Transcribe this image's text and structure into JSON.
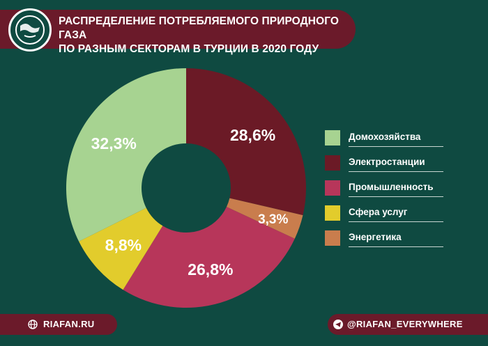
{
  "header": {
    "title": "РАСПРЕДЕЛЕНИЕ ПОТРЕБЛЯЕМОГО ПРИРОДНОГО ГАЗА\nПО РАЗНЫМ СЕКТОРАМ В ТУРЦИИ В 2020 ГОДУ"
  },
  "chart_data": {
    "type": "pie",
    "title": "РАСПРЕДЕЛЕНИЕ ПОТРЕБЛЯЕМОГО ПРИРОДНОГО ГАЗА ПО РАЗНЫМ СЕКТОРАМ В ТУРЦИИ В 2020 ГОДУ",
    "donut": true,
    "legend_position": "right",
    "slices": [
      {
        "label": "Электростанции",
        "value": 28.6,
        "display": "28,6%",
        "color": "#6b1a26"
      },
      {
        "label": "Энергетика",
        "value": 3.3,
        "display": "3,3%",
        "color": "#c97d4d"
      },
      {
        "label": "Промышленность",
        "value": 26.8,
        "display": "26,8%",
        "color": "#b7365a"
      },
      {
        "label": "Сфера услуг",
        "value": 8.8,
        "display": "8,8%",
        "color": "#e2cc2c"
      },
      {
        "label": "Домохозяйства",
        "value": 32.3,
        "display": "32,3%",
        "color": "#a7d391"
      }
    ]
  },
  "legend": [
    {
      "label": "Домохозяйства",
      "color": "#a7d391"
    },
    {
      "label": "Электростанции",
      "color": "#6b1a26"
    },
    {
      "label": "Промышленность",
      "color": "#b7365a"
    },
    {
      "label": "Сфера услуг",
      "color": "#e2cc2c"
    },
    {
      "label": "Энергетика",
      "color": "#c97d4d"
    }
  ],
  "footer": {
    "site": "RIAFAN.RU",
    "telegram": "@RIAFAN_EVERYWHERE"
  },
  "icons": {
    "logo": "riafan-globe-logo",
    "site": "globe-icon",
    "telegram": "telegram-icon"
  },
  "colors": {
    "background": "#0f4a41",
    "accent": "#6b1a2a"
  }
}
